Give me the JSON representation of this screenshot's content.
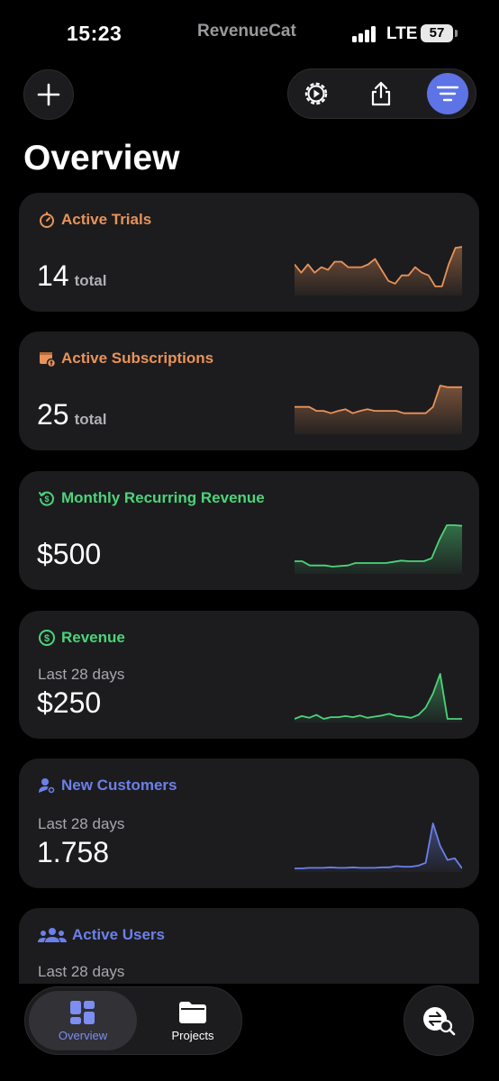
{
  "status_bar": {
    "time": "15:23",
    "brand": "RevenueCat",
    "network": "LTE",
    "battery": "57"
  },
  "colors": {
    "orange": "#e8935a",
    "green": "#4cd47a",
    "blue": "#6b80ea",
    "accent": "#5d73e6"
  },
  "header": {
    "title": "Overview"
  },
  "toolbar": {
    "buttons": [
      "gear-play-icon",
      "share-icon",
      "filter-icon"
    ]
  },
  "cards": [
    {
      "title": "Active Trials",
      "subtitle": "",
      "value": "14",
      "unit": "total",
      "color": "#e8935a",
      "icon": "timer-icon",
      "trend": [
        5,
        3.5,
        5,
        3.5,
        4.5,
        4,
        5.5,
        5.5,
        4.5,
        4.5,
        4.5,
        5,
        6,
        4,
        2,
        1.5,
        3,
        3,
        4.5,
        3.5,
        3,
        1,
        1,
        5,
        8,
        8.2
      ]
    },
    {
      "title": "Active Subscriptions",
      "subtitle": "",
      "value": "25",
      "unit": "total",
      "color": "#e8935a",
      "icon": "calendar-dollar-icon",
      "trend": [
        3,
        3,
        3,
        2.5,
        2.5,
        2.2,
        2.5,
        2.7,
        2.2,
        2.5,
        2.7,
        2.5,
        2.5,
        2.5,
        2.5,
        2.2,
        2.2,
        2.2,
        2.2,
        3,
        5.7,
        5.5,
        5.5,
        5.5
      ]
    },
    {
      "title": "Monthly Recurring Revenue",
      "subtitle": "",
      "value": "$500",
      "unit": "",
      "color": "#4cd47a",
      "icon": "cycle-dollar-icon",
      "trend": [
        1.5,
        1.5,
        0.8,
        0.8,
        0.8,
        0.6,
        0.7,
        0.8,
        1.2,
        1.2,
        1.2,
        1.2,
        1.2,
        1.4,
        1.6,
        1.5,
        1.5,
        1.5,
        2,
        5,
        7.5,
        7.5,
        7.4
      ]
    },
    {
      "title": "Revenue",
      "subtitle": "Last 28 days",
      "value": "$250",
      "unit": "",
      "color": "#4cd47a",
      "icon": "dollar-circle-icon",
      "trend": [
        0,
        0.5,
        0.2,
        0.7,
        0,
        0.3,
        0.3,
        0.5,
        0.3,
        0.6,
        0.2,
        0.4,
        0.6,
        0.9,
        0.5,
        0.4,
        0.2,
        0.7,
        2,
        4.5,
        8,
        0,
        0,
        0
      ]
    },
    {
      "title": "New Customers",
      "subtitle": "Last 28 days",
      "value": "1.758",
      "unit": "",
      "color": "#6b80ea",
      "icon": "person-add-icon",
      "trend": [
        0,
        0,
        0.1,
        0.1,
        0.1,
        0.2,
        0.1,
        0.1,
        0.2,
        0.1,
        0.1,
        0.1,
        0.2,
        0.2,
        0.4,
        0.3,
        0.3,
        0.5,
        1,
        8,
        4,
        1.5,
        1.8,
        0
      ]
    },
    {
      "title": "Active Users",
      "subtitle": "Last 28 days",
      "value": "",
      "unit": "",
      "color": "#6b80ea",
      "icon": "people-icon",
      "trend": []
    }
  ],
  "tabs": [
    {
      "label": "Overview",
      "icon": "dashboard-icon",
      "active": true
    },
    {
      "label": "Projects",
      "icon": "folder-icon",
      "active": false
    }
  ],
  "fab": {
    "icon": "switch-search-icon"
  }
}
